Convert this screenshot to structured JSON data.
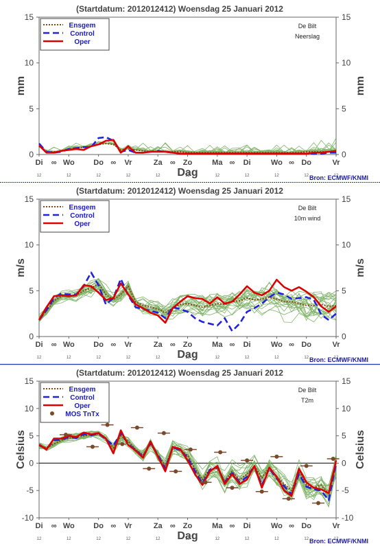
{
  "chart_data": [
    {
      "type": "line",
      "title": "(Startdatum: 2012012412)   Woensdag  25 Januari   2012",
      "location": "De Bilt",
      "variable": "Neerslag",
      "ylabel": "mm",
      "xlabel": "Dag",
      "ylim": [
        0,
        15
      ],
      "yticks": [
        0,
        5,
        10,
        15
      ],
      "day_labels": [
        "Di",
        "Wo",
        "Do",
        "Vr",
        "Za",
        "Zo",
        "Ma",
        "Di",
        "Wo",
        "Do",
        "Vr"
      ],
      "sub_label": "12",
      "source": "Bron: ECMWF/KNMI",
      "legend": [
        "Ensgem",
        "Control",
        "Oper"
      ],
      "legend_position": "top-left",
      "colors": {
        "Ensgem": "#8b4513",
        "Control": "#2222dd",
        "Oper": "#dd0000",
        "members": "#6aa84f"
      },
      "series": [
        {
          "name": "Ensgem",
          "values": [
            0.9,
            0.3,
            0.3,
            0.4,
            0.6,
            0.7,
            0.8,
            0.9,
            1.1,
            1.2,
            1.1,
            0.5,
            0.6,
            0.5,
            0.4,
            0.3,
            0.3,
            0.3,
            0.3,
            0.3,
            0.2,
            0.2,
            0.2,
            0.2,
            0.2,
            0.2,
            0.2,
            0.2,
            0.2,
            0.2,
            0.2,
            0.2,
            0.2,
            0.2,
            0.2,
            0.2,
            0.3,
            0.3,
            0.3,
            0.3,
            0.4
          ]
        },
        {
          "name": "Control",
          "values": [
            1.2,
            0.3,
            0.2,
            0.3,
            0.6,
            0.7,
            0.8,
            0.8,
            1.8,
            1.9,
            1.5,
            0.3,
            0.5,
            0.2,
            0.2,
            0.3,
            0.4,
            0.3,
            0.2,
            0.1,
            0.1,
            0.1,
            0.1,
            0.1,
            0.1,
            0.1,
            0.1,
            0.1,
            0.1,
            0.1,
            0.1,
            0.1,
            0.1,
            0.1,
            0.1,
            0.1,
            0.1,
            0.1,
            0.1,
            0.2,
            0.2
          ]
        },
        {
          "name": "Oper",
          "values": [
            1.0,
            0.2,
            0.2,
            0.4,
            0.5,
            0.6,
            0.5,
            0.9,
            1.1,
            1.5,
            1.6,
            0.2,
            0.9,
            0.2,
            0.2,
            0.3,
            0.3,
            0.3,
            0.2,
            0.1,
            0.1,
            0.1,
            0.1,
            0.1,
            0.1,
            0.1,
            0.1,
            0.1,
            0.1,
            0.1,
            0.1,
            0.1,
            0.1,
            0.1,
            0.1,
            0.1,
            0.1,
            0.2,
            0.2,
            0.3,
            0.4
          ]
        }
      ]
    },
    {
      "type": "line",
      "title": "(Startdatum: 2012012412)   Woensdag  25 Januari   2012",
      "location": "De Bilt",
      "variable": "10m wind",
      "ylabel": "m/s",
      "xlabel": "Dag",
      "ylim": [
        0,
        15
      ],
      "yticks": [
        0,
        5,
        10,
        15
      ],
      "day_labels": [
        "Di",
        "Wo",
        "Do",
        "Vr",
        "Za",
        "Zo",
        "Ma",
        "Di",
        "Wo",
        "Do",
        "Vr"
      ],
      "sub_label": "12",
      "source": "Bron: ECMWF/KNMI",
      "legend": [
        "Ensgem",
        "Control",
        "Oper"
      ],
      "legend_position": "top-left",
      "colors": {
        "Ensgem": "#8b4513",
        "Control": "#2222dd",
        "Oper": "#dd0000",
        "members": "#6aa84f"
      },
      "series": [
        {
          "name": "Ensgem",
          "values": [
            1.9,
            2.8,
            3.9,
            4.4,
            4.5,
            4.5,
            5.0,
            5.3,
            5.8,
            4.6,
            4.0,
            4.6,
            5.5,
            3.8,
            3.4,
            3.2,
            3.0,
            2.6,
            3.1,
            3.5,
            3.6,
            3.4,
            3.2,
            3.4,
            3.6,
            3.5,
            3.8,
            3.9,
            4.2,
            4.0,
            4.1,
            4.3,
            4.1,
            3.8,
            3.8,
            3.6,
            3.4,
            3.4,
            3.5,
            3.3,
            3.4
          ]
        },
        {
          "name": "Control",
          "values": [
            1.8,
            2.9,
            4.2,
            4.7,
            4.6,
            4.6,
            5.5,
            7.0,
            5.6,
            3.5,
            4.2,
            6.3,
            4.5,
            3.2,
            3.0,
            2.8,
            2.6,
            2.0,
            3.2,
            3.0,
            2.7,
            2.0,
            1.6,
            1.4,
            1.2,
            2.0,
            0.6,
            1.4,
            2.7,
            3.1,
            3.6,
            4.3,
            4.8,
            4.6,
            4.1,
            4.2,
            4.3,
            4.0,
            2.4,
            1.8,
            2.5
          ]
        },
        {
          "name": "Oper",
          "values": [
            1.8,
            3.2,
            4.4,
            4.5,
            4.4,
            4.5,
            5.6,
            5.5,
            4.8,
            4.0,
            4.2,
            5.8,
            4.6,
            3.5,
            3.1,
            2.6,
            2.3,
            1.5,
            3.1,
            3.8,
            4.4,
            4.2,
            4.1,
            3.6,
            4.3,
            3.6,
            3.8,
            4.6,
            5.5,
            4.8,
            4.5,
            5.0,
            6.2,
            5.4,
            5.0,
            5.4,
            4.9,
            4.3,
            3.3,
            2.7,
            3.3
          ]
        }
      ]
    },
    {
      "type": "line",
      "title": "(Startdatum: 2012012412)   Woensdag  25 Januari   2012",
      "location": "De Bilt",
      "variable": "T2m",
      "ylabel": "Celsius",
      "xlabel": "Dag",
      "ylim": [
        -10,
        15
      ],
      "yticks": [
        -10,
        -5,
        0,
        5,
        10,
        15
      ],
      "day_labels": [
        "Di",
        "Wo",
        "Do",
        "Vr",
        "Za",
        "Zo",
        "Ma",
        "Di",
        "Wo",
        "Do",
        "Vr"
      ],
      "sub_label": "12",
      "source": "Bron: ECMWF/KNMI",
      "legend": [
        "Ensgem",
        "Control",
        "Oper",
        "MOS TnTx"
      ],
      "legend_position": "top-left",
      "colors": {
        "Ensgem": "#8b4513",
        "Control": "#2222dd",
        "Oper": "#dd0000",
        "members": "#6aa84f",
        "MOS": "#7a4a2a"
      },
      "series": [
        {
          "name": "Ensgem",
          "values": [
            3.2,
            2.8,
            3.5,
            4.2,
            4.6,
            4.7,
            5.0,
            5.2,
            5.3,
            4.5,
            2.8,
            5.0,
            4.0,
            2.5,
            1.5,
            3.5,
            1.5,
            -0.5,
            2.8,
            2.3,
            1.5,
            -1.0,
            -3.0,
            -1.0,
            -1.0,
            -3.3,
            -1.5,
            -3.0,
            -2.0,
            -0.5,
            -2.7,
            -0.8,
            -2.5,
            -3.8,
            -5.0,
            -1.5,
            -4.0,
            -4.5,
            -4.0,
            -5.5,
            -0.5
          ]
        },
        {
          "name": "Control",
          "values": [
            3.3,
            2.6,
            4.2,
            4.3,
            4.8,
            4.6,
            5.3,
            5.1,
            5.4,
            4.4,
            3.2,
            5.5,
            3.5,
            2.4,
            1.2,
            3.7,
            1.5,
            -1.0,
            2.9,
            2.4,
            1.0,
            -1.5,
            -3.7,
            -1.2,
            -0.7,
            -3.5,
            -1.8,
            -3.5,
            -2.5,
            -0.6,
            -4.0,
            -1.0,
            -2.8,
            -4.2,
            -5.7,
            -2.0,
            -4.3,
            -4.8,
            -5.0,
            -6.8,
            0.0
          ]
        },
        {
          "name": "Oper",
          "values": [
            3.4,
            2.5,
            4.5,
            4.5,
            5.0,
            4.8,
            5.6,
            5.3,
            5.5,
            4.5,
            1.8,
            6.0,
            3.3,
            2.3,
            1.0,
            4.0,
            1.2,
            -1.5,
            3.0,
            2.6,
            0.5,
            -2.0,
            -4.0,
            -1.5,
            -0.5,
            -3.8,
            -2.0,
            -3.8,
            -3.0,
            -0.5,
            -4.5,
            -0.8,
            -2.5,
            -5.0,
            -6.0,
            -1.0,
            -3.5,
            -4.5,
            -4.8,
            -5.5,
            0.5
          ]
        }
      ],
      "mos_tntx": [
        {
          "x": 0.9,
          "value": 5.2
        },
        {
          "x": 1.8,
          "value": 3.0
        },
        {
          "x": 2.3,
          "value": 7.0
        },
        {
          "x": 2.8,
          "value": 3.5
        },
        {
          "x": 3.3,
          "value": 6.5
        },
        {
          "x": 3.7,
          "value": -1.0
        },
        {
          "x": 4.2,
          "value": 5.5
        },
        {
          "x": 4.6,
          "value": -1.5
        },
        {
          "x": 5.1,
          "value": 2.5
        },
        {
          "x": 5.6,
          "value": -3.5
        },
        {
          "x": 6.1,
          "value": 2.0
        },
        {
          "x": 6.5,
          "value": -4.5
        },
        {
          "x": 7.0,
          "value": 0.5
        },
        {
          "x": 7.5,
          "value": -5.2
        },
        {
          "x": 8.0,
          "value": 1.2
        },
        {
          "x": 8.4,
          "value": -6.5
        },
        {
          "x": 9.0,
          "value": -0.5
        },
        {
          "x": 9.4,
          "value": -7.3
        },
        {
          "x": 9.9,
          "value": 0.8
        }
      ]
    }
  ]
}
